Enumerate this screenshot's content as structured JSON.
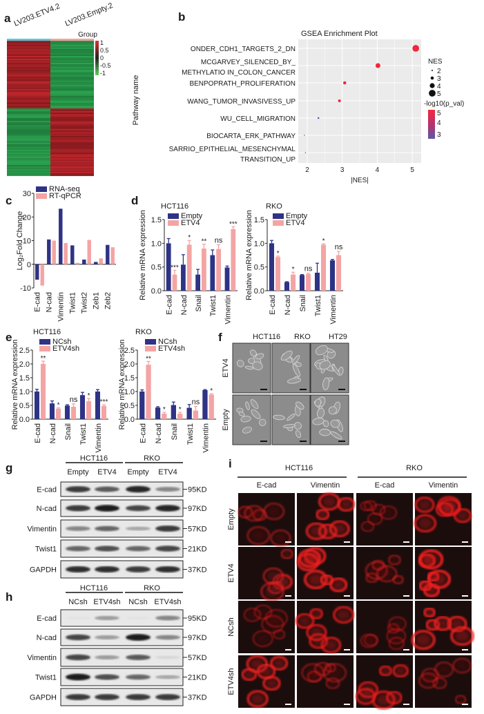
{
  "panel_letters": {
    "a": "a",
    "b": "b",
    "c": "c",
    "d": "d",
    "e": "e",
    "f": "f",
    "g": "g",
    "h": "h",
    "i": "i"
  },
  "colors": {
    "navy": "#2e3385",
    "pink": "#f4a4a4",
    "heat_red": "#b0232a",
    "heat_green": "#2a9a4a",
    "group_etv4": "#5bc8d8",
    "group_empty": "#f4a0a0",
    "fluor_red": "#e0201e"
  },
  "heatmap": {
    "columns": [
      "LV203.ETV4.2",
      "LV203.Empty.2"
    ],
    "legend_title": "Group",
    "colorbar_ticks": [
      "1",
      "0.5",
      "0",
      "-0.5",
      "-1"
    ]
  },
  "chart_data": [
    {
      "id": "b",
      "type": "scatter",
      "title": "GSEA Enrichment Plot",
      "xlabel": "|NES|",
      "ylabel": "Pathway name",
      "xlim": [
        1.9,
        5.2
      ],
      "xticks": [
        "2",
        "3",
        "4",
        "5"
      ],
      "pathways": [
        {
          "lines": [
            "ONDER_CDH1_TARGETS_2_DN"
          ],
          "nes": 5.1,
          "neglog10p": 5.2
        },
        {
          "lines": [
            "MCGARVEY_SILENCED_BY_",
            "METHYLATIO IN_COLON_CANCER"
          ],
          "nes": 4.02,
          "neglog10p": 5.0
        },
        {
          "lines": [
            "BENPOPRATH_PROLIFERATION"
          ],
          "nes": 3.07,
          "neglog10p": 5.0
        },
        {
          "lines": [
            "WANG_TUMOR_INVASIVESS_UP"
          ],
          "nes": 2.92,
          "neglog10p": 5.0
        },
        {
          "lines": [
            "WU_CELL_MIGRATION"
          ],
          "nes": 2.32,
          "neglog10p": 2.9
        },
        {
          "lines": [
            "BIOCARTA_ERK_PATHWAY"
          ],
          "nes": 1.92,
          "neglog10p": 2.8
        },
        {
          "lines": [
            "SARRIO_EPITHELIAL_MESENCHYMAL",
            "TRANSITION_UP"
          ],
          "nes": 1.95,
          "neglog10p": 2.7
        }
      ],
      "legend": {
        "size_title": "NES",
        "sizes": [
          "2",
          "3",
          "4",
          "5"
        ],
        "color_title": "-log10(p_val)",
        "color_ticks": [
          "5",
          "4",
          "3"
        ]
      }
    },
    {
      "id": "c",
      "type": "bar",
      "title": "",
      "ylabel": "Log₂Fold Change",
      "ylim": [
        -10,
        30
      ],
      "yticks": [
        "-10",
        "0",
        "10",
        "20",
        "30"
      ],
      "categories": [
        "E-cad",
        "N-cad",
        "Vimentin",
        "Twist1",
        "Twist2",
        "Zeb1",
        "Zeb2"
      ],
      "series": [
        {
          "name": "RNA-seq",
          "values": [
            -6.5,
            10.5,
            23.5,
            8,
            2,
            1,
            8.2
          ]
        },
        {
          "name": "RT-qPCR",
          "values": [
            -9,
            10,
            9,
            0.6,
            10.3,
            2.5,
            7.2
          ]
        }
      ]
    },
    {
      "id": "d_hct116",
      "type": "bar",
      "title": "HCT116",
      "ylabel": "Relative mRNA expression",
      "ylim": [
        0,
        1.5
      ],
      "yticks": [
        "0.0",
        "0.5",
        "1.0",
        "1.5"
      ],
      "categories": [
        "E-cad",
        "N-cad",
        "Snail",
        "Twist1",
        "Vimentin"
      ],
      "series": [
        {
          "name": "Empty",
          "values": [
            1.0,
            0.55,
            0.34,
            0.75,
            0.49
          ],
          "errors": [
            0.1,
            0.21,
            0.11,
            0.11,
            0.03
          ]
        },
        {
          "name": "ETV4",
          "values": [
            0.34,
            0.97,
            0.89,
            0.88,
            1.3
          ],
          "errors": [
            0.09,
            0.09,
            0.09,
            0.09,
            0.05
          ]
        }
      ],
      "significance": [
        "***",
        "*",
        "**",
        "ns",
        "***"
      ]
    },
    {
      "id": "d_rko",
      "type": "bar",
      "title": "RKO",
      "ylabel": "Relative mRNA expression",
      "ylim": [
        0,
        1.5
      ],
      "yticks": [
        "0.0",
        "0.5",
        "1.0",
        "1.5"
      ],
      "categories": [
        "E-cad",
        "N-cad",
        "Snail",
        "Twist1",
        "Vimentin"
      ],
      "series": [
        {
          "name": "Empty",
          "values": [
            1.0,
            0.18,
            0.33,
            0.38,
            0.64
          ],
          "errors": [
            0.06,
            0.01,
            0.01,
            0.2,
            0.02
          ]
        },
        {
          "name": "ETV4",
          "values": [
            0.71,
            0.34,
            0.35,
            0.97,
            0.75
          ],
          "errors": [
            0.02,
            0.05,
            0.02,
            0.02,
            0.08
          ]
        }
      ],
      "significance": [
        "*",
        "*",
        "ns",
        "*",
        "ns"
      ]
    },
    {
      "id": "e_hct116",
      "type": "bar",
      "title": "HCT116",
      "ylabel": "Relative mRNA expression",
      "ylim": [
        0,
        2.5
      ],
      "yticks": [
        "0.0",
        "0.5",
        "1.0",
        "1.5",
        "2.0",
        "2.5"
      ],
      "categories": [
        "E-cad",
        "N-cad",
        "Snail",
        "Twist1",
        "Vimentin"
      ],
      "series": [
        {
          "name": "NCsh",
          "values": [
            1.0,
            0.57,
            0.49,
            0.87,
            1.0
          ],
          "errors": [
            0.08,
            0.09,
            0.03,
            0.1,
            0.07
          ]
        },
        {
          "name": "ETV4sh",
          "values": [
            2.0,
            0.38,
            0.45,
            0.65,
            0.48
          ],
          "errors": [
            0.1,
            0.03,
            0.1,
            0.1,
            0.04
          ]
        }
      ],
      "significance": [
        "**",
        "*",
        "ns",
        "*",
        "***"
      ]
    },
    {
      "id": "e_rko",
      "type": "bar",
      "title": "RKO",
      "ylabel": "Relative mRNA expression",
      "ylim": [
        0,
        2.5
      ],
      "yticks": [
        "0.0",
        "0.5",
        "1.0",
        "1.5",
        "2.0",
        "2.5"
      ],
      "categories": [
        "E-cad",
        "N-cad",
        "Snail",
        "Twist1",
        "Vimentin"
      ],
      "series": [
        {
          "name": "NCsh",
          "values": [
            1.0,
            0.42,
            0.51,
            0.41,
            1.05
          ],
          "errors": [
            0.06,
            0.03,
            0.11,
            0.12,
            0.02
          ]
        },
        {
          "name": "ETV4sh",
          "values": [
            1.97,
            0.2,
            0.2,
            0.31,
            0.89
          ],
          "errors": [
            0.12,
            0.05,
            0.05,
            0.15,
            0.03
          ]
        }
      ],
      "significance": [
        "**",
        "*",
        "*",
        "ns",
        "*"
      ]
    }
  ],
  "panel_f": {
    "columns": [
      "HCT116",
      "RKO",
      "HT29"
    ],
    "rows": [
      "ETV4",
      "Empty"
    ]
  },
  "panel_g": {
    "groups": [
      "HCT116",
      "RKO"
    ],
    "lanes": [
      "Empty",
      "ETV4",
      "Empty",
      "ETV4"
    ],
    "rows": [
      {
        "protein": "E-cad",
        "size": "95KD",
        "intensity": [
          0.8,
          0.65,
          0.9,
          0.45
        ]
      },
      {
        "protein": "N-cad",
        "size": "97KD",
        "intensity": [
          0.8,
          0.95,
          0.75,
          0.9
        ]
      },
      {
        "protein": "Vimentin",
        "size": "57KD",
        "intensity": [
          0.45,
          0.6,
          0.3,
          0.8
        ]
      },
      {
        "protein": "Twist1",
        "size": "21KD",
        "intensity": [
          0.6,
          0.7,
          0.6,
          0.75
        ]
      },
      {
        "protein": "GAPDH",
        "size": "37KD",
        "intensity": [
          0.85,
          0.85,
          0.8,
          0.85
        ]
      }
    ]
  },
  "panel_h": {
    "groups": [
      "HCT116",
      "RKO"
    ],
    "lanes": [
      "NCsh",
      "ETV4sh",
      "NCsh",
      "ETV4sh"
    ],
    "rows": [
      {
        "protein": "E-cad",
        "size": "95KD",
        "intensity": [
          0.02,
          0.35,
          0.02,
          0.45
        ]
      },
      {
        "protein": "N-cad",
        "size": "97KD",
        "intensity": [
          0.75,
          0.35,
          0.95,
          0.45
        ]
      },
      {
        "protein": "Vimentin",
        "size": "57KD",
        "intensity": [
          0.75,
          0.35,
          0.65,
          0.08
        ]
      },
      {
        "protein": "Twist1",
        "size": "21KD",
        "intensity": [
          0.95,
          0.7,
          0.6,
          0.3
        ]
      },
      {
        "protein": "GAPDH",
        "size": "37KD",
        "intensity": [
          0.8,
          0.8,
          0.8,
          0.8
        ]
      }
    ]
  },
  "panel_i": {
    "groups": [
      "HCT116",
      "RKO"
    ],
    "columns": [
      "E-cad",
      "Vimentin",
      "E-cad",
      "Vimentin"
    ],
    "rows": [
      "Empty",
      "ETV4",
      "NCsh",
      "ETV4sh"
    ],
    "brightness": [
      [
        0.35,
        0.75,
        0.25,
        0.7
      ],
      [
        0.45,
        0.85,
        0.35,
        0.9
      ],
      [
        0.25,
        0.7,
        0.25,
        0.8
      ],
      [
        0.75,
        0.3,
        0.7,
        0.3
      ]
    ]
  }
}
